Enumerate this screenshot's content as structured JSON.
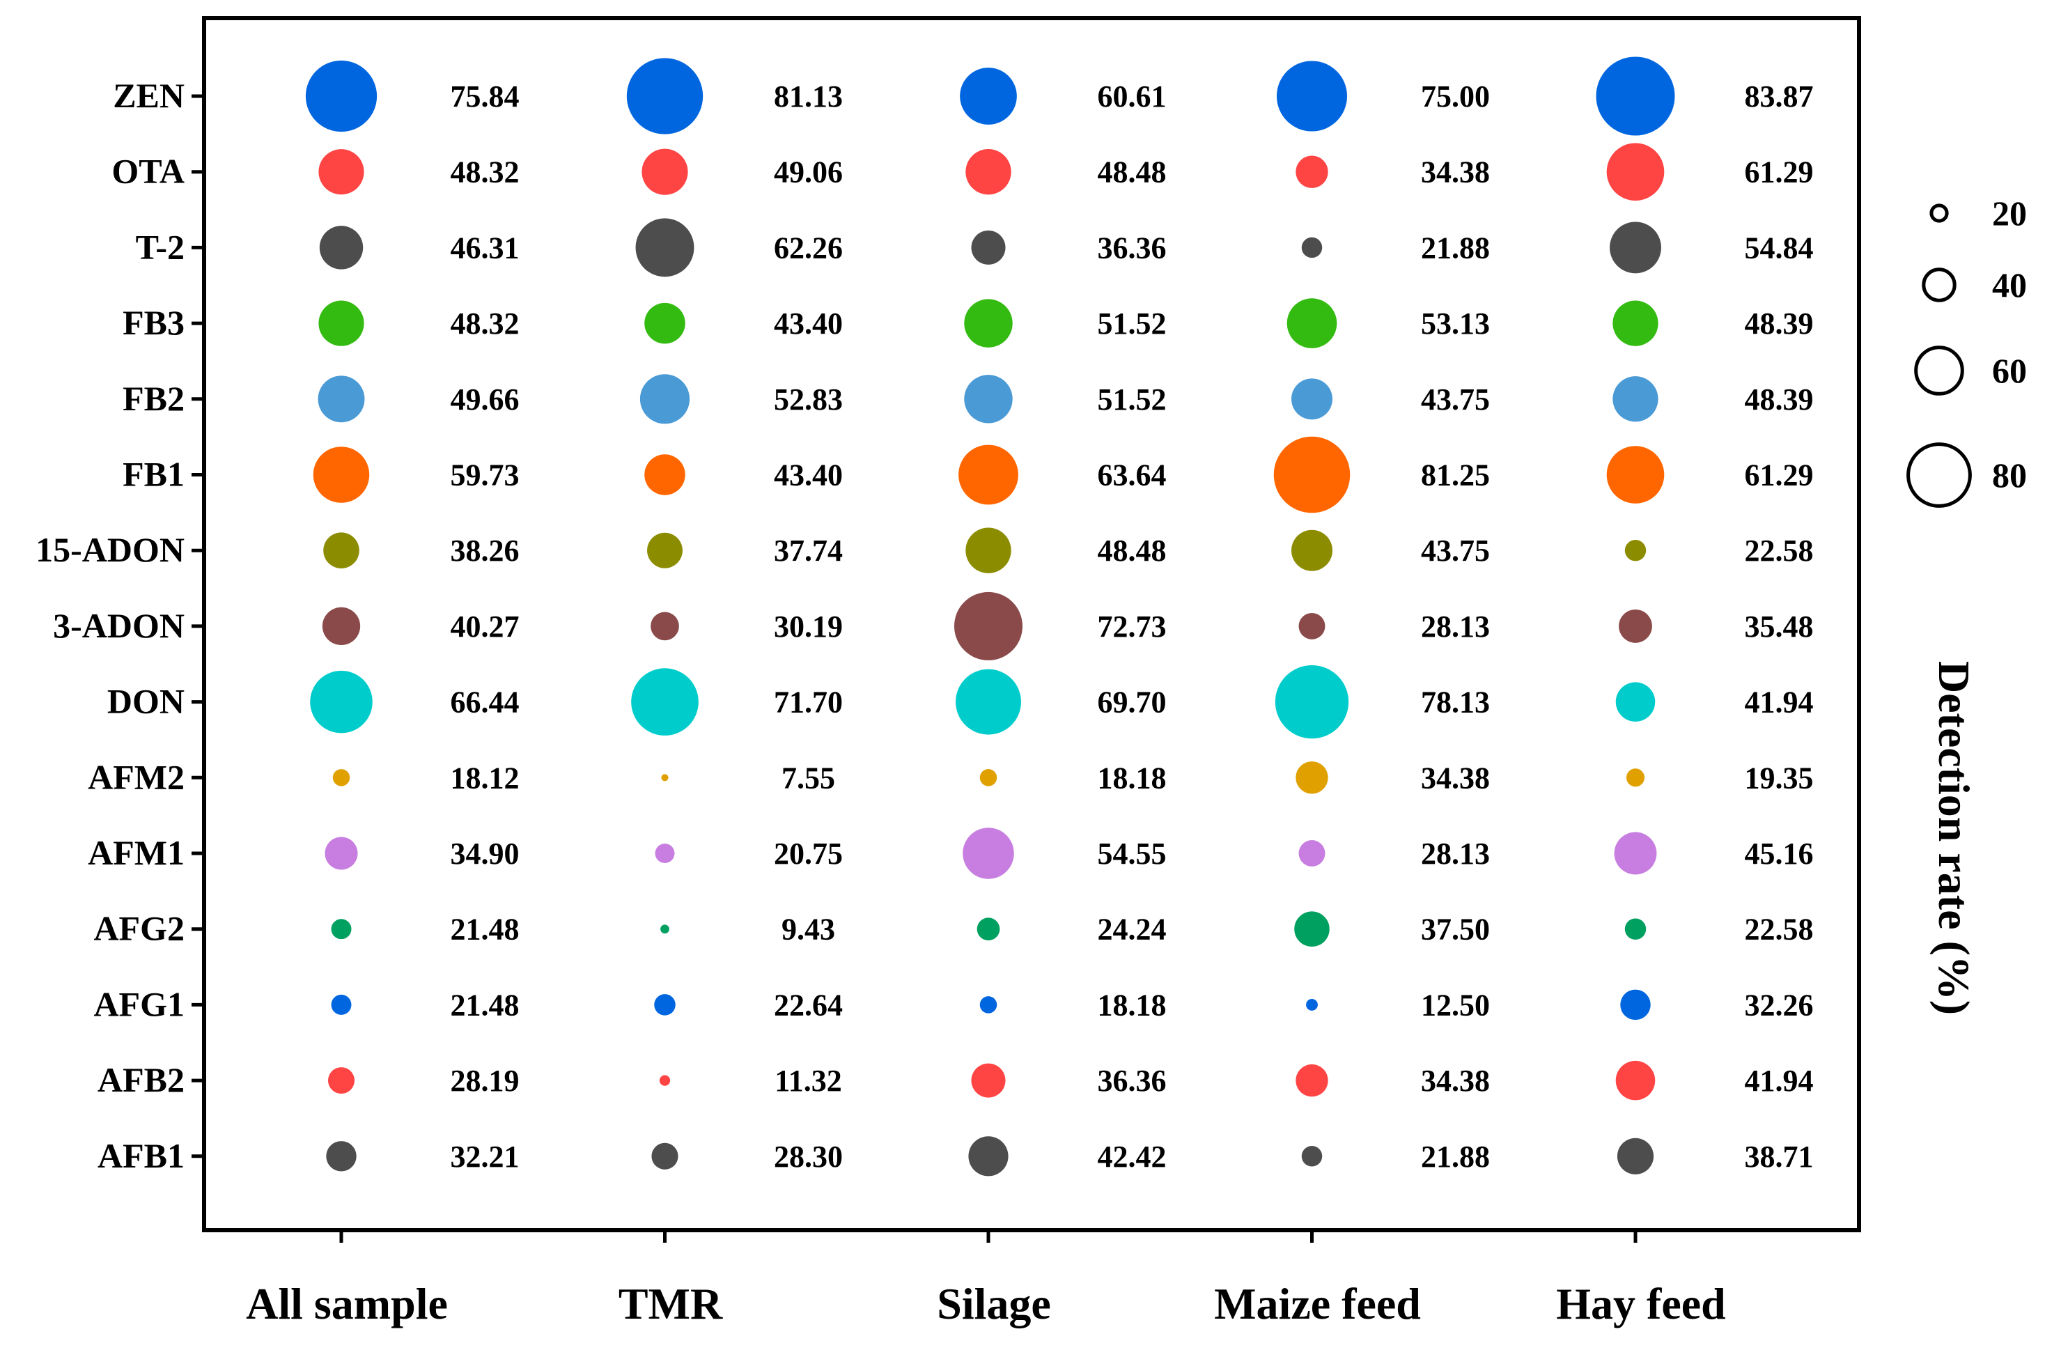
{
  "chart_data": {
    "type": "bubble",
    "title": "",
    "xlabel": "",
    "ylabel": "Detection rate (%)",
    "categories": [
      "All sample",
      "TMR",
      "Silage",
      "Maize feed",
      "Hay feed"
    ],
    "rows": [
      {
        "name": "ZEN",
        "color": "#0066e0",
        "values": [
          75.84,
          81.13,
          60.61,
          75.0,
          83.87
        ],
        "labels": [
          "75.84",
          "81.13",
          "60.61",
          "75.00",
          "83.87"
        ]
      },
      {
        "name": "OTA",
        "color": "#ff4444",
        "values": [
          48.32,
          49.06,
          48.48,
          34.38,
          61.29
        ],
        "labels": [
          "48.32",
          "49.06",
          "48.48",
          "34.38",
          "61.29"
        ]
      },
      {
        "name": "T-2",
        "color": "#4d4d4d",
        "values": [
          46.31,
          62.26,
          36.36,
          21.88,
          54.84
        ],
        "labels": [
          "46.31",
          "62.26",
          "36.36",
          "21.88",
          "54.84"
        ]
      },
      {
        "name": "FB3",
        "color": "#33bb11",
        "values": [
          48.32,
          43.4,
          51.52,
          53.13,
          48.39
        ],
        "labels": [
          "48.32",
          "43.40",
          "51.52",
          "53.13",
          "48.39"
        ]
      },
      {
        "name": "FB2",
        "color": "#4a9ad6",
        "values": [
          49.66,
          52.83,
          51.52,
          43.75,
          48.39
        ],
        "labels": [
          "49.66",
          "52.83",
          "51.52",
          "43.75",
          "48.39"
        ]
      },
      {
        "name": "FB1",
        "color": "#ff6600",
        "values": [
          59.73,
          43.4,
          63.64,
          81.25,
          61.29
        ],
        "labels": [
          "59.73",
          "43.40",
          "63.64",
          "81.25",
          "61.29"
        ]
      },
      {
        "name": "15-ADON",
        "color": "#8c8c00",
        "values": [
          38.26,
          37.74,
          48.48,
          43.75,
          22.58
        ],
        "labels": [
          "38.26",
          "37.74",
          "48.48",
          "43.75",
          "22.58"
        ]
      },
      {
        "name": "3-ADON",
        "color": "#8b4a4a",
        "values": [
          40.27,
          30.19,
          72.73,
          28.13,
          35.48
        ],
        "labels": [
          "40.27",
          "30.19",
          "72.73",
          "28.13",
          "35.48"
        ]
      },
      {
        "name": "DON",
        "color": "#00cccc",
        "values": [
          66.44,
          71.7,
          69.7,
          78.13,
          41.94
        ],
        "labels": [
          "66.44",
          "71.70",
          "69.70",
          "78.13",
          "41.94"
        ]
      },
      {
        "name": "AFM2",
        "color": "#e0a000",
        "values": [
          18.12,
          7.55,
          18.18,
          34.38,
          19.35
        ],
        "labels": [
          "18.12",
          "7.55",
          "18.18",
          "34.38",
          "19.35"
        ]
      },
      {
        "name": "AFM1",
        "color": "#c77ee0",
        "values": [
          34.9,
          20.75,
          54.55,
          28.13,
          45.16
        ],
        "labels": [
          "34.90",
          "20.75",
          "54.55",
          "28.13",
          "45.16"
        ]
      },
      {
        "name": "AFG2",
        "color": "#00a060",
        "values": [
          21.48,
          9.43,
          24.24,
          37.5,
          22.58
        ],
        "labels": [
          "21.48",
          "9.43",
          "24.24",
          "37.50",
          "22.58"
        ]
      },
      {
        "name": "AFG1",
        "color": "#0066e0",
        "values": [
          21.48,
          22.64,
          18.18,
          12.5,
          32.26
        ],
        "labels": [
          "21.48",
          "22.64",
          "18.18",
          "12.50",
          "32.26"
        ]
      },
      {
        "name": "AFB2",
        "color": "#ff4444",
        "values": [
          28.19,
          11.32,
          36.36,
          34.38,
          41.94
        ],
        "labels": [
          "28.19",
          "11.32",
          "36.36",
          "34.38",
          "41.94"
        ]
      },
      {
        "name": "AFB1",
        "color": "#4d4d4d",
        "values": [
          32.21,
          28.3,
          42.42,
          21.88,
          38.71
        ],
        "labels": [
          "32.21",
          "28.30",
          "42.42",
          "21.88",
          "38.71"
        ]
      }
    ],
    "legend": {
      "title": "Detection rate (%)",
      "sizes": [
        20,
        40,
        60,
        80
      ],
      "labels": [
        "20",
        "40",
        "60",
        "80"
      ],
      "placement": "right"
    }
  }
}
